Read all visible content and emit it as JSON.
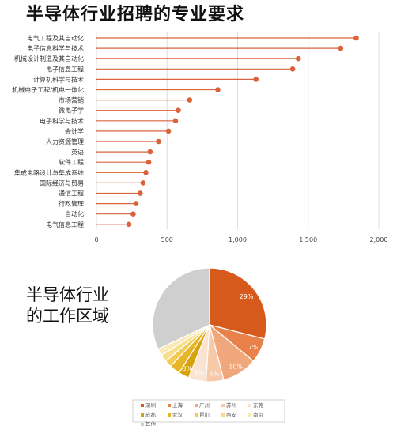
{
  "charts": {
    "bar_title": "半导体行业招聘的专业要求",
    "pie_title_line1": "半导体行业",
    "pie_title_line2": "的工作区域"
  },
  "chart_data": [
    {
      "type": "bar",
      "title": "半导体行业招聘的专业要求",
      "categories": [
        "电气工程及其自动化",
        "电子信息科学与技术",
        "机械设计制造及其自动化",
        "电子信息工程",
        "计算机科学与技术",
        "机械电子工程/机电一体化",
        "市场营销",
        "微电子学",
        "电子科学与技术",
        "会计学",
        "人力资源管理",
        "英语",
        "软件工程",
        "集成电路设计与集成系统",
        "国际经济与贸易",
        "通信工程",
        "行政管理",
        "自动化",
        "电气信息工程"
      ],
      "values": [
        1840,
        1730,
        1430,
        1390,
        1130,
        860,
        660,
        580,
        560,
        510,
        440,
        380,
        370,
        350,
        330,
        310,
        280,
        260,
        230
      ],
      "xticks": [
        "0",
        "500",
        "1,000",
        "1,500",
        "2,000"
      ],
      "xlim": [
        0,
        2000
      ],
      "color": "#d9633b"
    },
    {
      "type": "pie",
      "title": "半导体行业的工作区域",
      "slices": [
        {
          "label": "深圳",
          "value": 29,
          "text": "29%",
          "color": "#d65a1c"
        },
        {
          "label": "上海",
          "value": 7,
          "text": "7%",
          "color": "#e8814a"
        },
        {
          "label": "广州",
          "value": 10,
          "text": "10%",
          "color": "#f0a77b"
        },
        {
          "label": "苏州",
          "value": 5,
          "text": "5%",
          "color": "#f6c9a9"
        },
        {
          "label": "东莞",
          "value": 5,
          "text": "5%",
          "color": "#fbe3d2"
        },
        {
          "label": "成都",
          "value": 3,
          "text": "3%",
          "color": "#d6a20d"
        },
        {
          "label": "武汉",
          "value": 3,
          "text": "",
          "color": "#e6b628"
        },
        {
          "label": "昆山",
          "value": 2,
          "text": "",
          "color": "#f0cc57"
        },
        {
          "label": "西安",
          "value": 2,
          "text": "",
          "color": "#f6de8d"
        },
        {
          "label": "南京",
          "value": 2,
          "text": "",
          "color": "#faeab8"
        },
        {
          "label": "其他",
          "value": 32,
          "text": "",
          "color": "#cfcfcf"
        }
      ]
    }
  ]
}
